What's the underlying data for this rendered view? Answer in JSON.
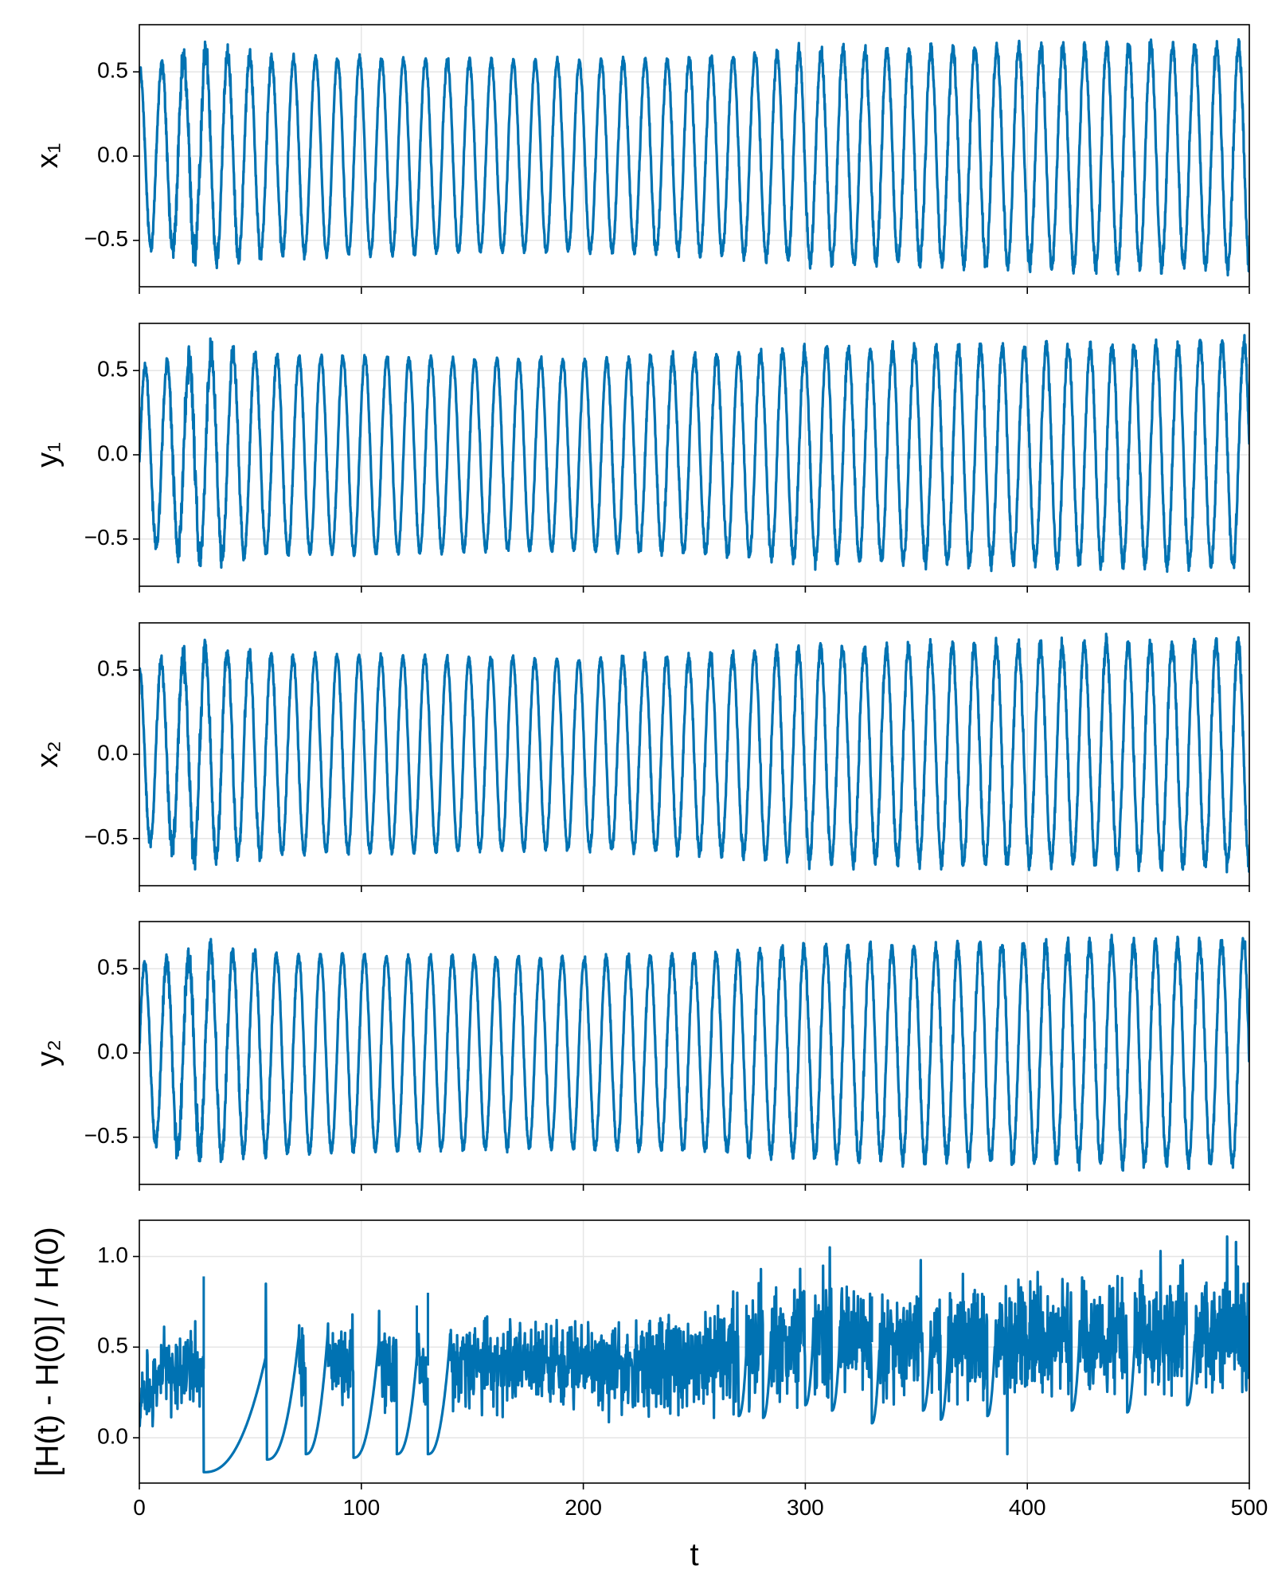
{
  "figure": {
    "accent_color": "#0072b2",
    "grid_color": "#e5e5e5",
    "background": "#ffffff"
  },
  "chart_data": [
    {
      "type": "line",
      "ylabel": "x₁",
      "xlim": [
        0,
        500
      ],
      "ylim": [
        -0.78,
        0.78
      ],
      "yticks": [
        -0.5,
        0.0,
        0.5
      ],
      "ytick_labels": [
        "−0.5",
        "0.0",
        "0.5"
      ],
      "xticks": [
        0,
        100,
        200,
        300,
        400,
        500
      ],
      "show_xtick_labels": false,
      "grid": true,
      "color": "#0072b2",
      "x": [
        0,
        12,
        25,
        30,
        40,
        60,
        80,
        100,
        140,
        180,
        200,
        240,
        260,
        280,
        300,
        320,
        340,
        360,
        380,
        400,
        420,
        440,
        460,
        480,
        500
      ],
      "amplitude": [
        0.52,
        0.55,
        0.58,
        0.62,
        0.6,
        0.58,
        0.58,
        0.58,
        0.57,
        0.56,
        0.56,
        0.57,
        0.58,
        0.6,
        0.62,
        0.63,
        0.62,
        0.63,
        0.64,
        0.64,
        0.64,
        0.65,
        0.65,
        0.65,
        0.66
      ],
      "period": 9.9,
      "phase": 1.45,
      "noise": [
        0.02,
        0.05,
        0.1,
        0.07,
        0.05,
        0.03,
        0.02,
        0.02,
        0.02,
        0.02,
        0.02,
        0.03,
        0.03,
        0.03,
        0.04,
        0.04,
        0.04,
        0.04,
        0.04,
        0.04,
        0.04,
        0.04,
        0.04,
        0.04,
        0.04
      ]
    },
    {
      "type": "line",
      "ylabel": "y₁",
      "xlim": [
        0,
        500
      ],
      "ylim": [
        -0.78,
        0.78
      ],
      "yticks": [
        -0.5,
        0.0,
        0.5
      ],
      "ytick_labels": [
        "−0.5",
        "0.0",
        "0.5"
      ],
      "xticks": [
        0,
        100,
        200,
        300,
        400,
        500
      ],
      "show_xtick_labels": false,
      "grid": true,
      "color": "#0072b2",
      "x": [
        0,
        12,
        25,
        30,
        40,
        60,
        80,
        100,
        140,
        180,
        200,
        240,
        260,
        280,
        300,
        320,
        340,
        360,
        380,
        400,
        420,
        440,
        460,
        480,
        500
      ],
      "amplitude": [
        0.52,
        0.55,
        0.58,
        0.62,
        0.6,
        0.58,
        0.58,
        0.58,
        0.57,
        0.56,
        0.56,
        0.57,
        0.58,
        0.6,
        0.62,
        0.63,
        0.62,
        0.63,
        0.64,
        0.64,
        0.64,
        0.65,
        0.65,
        0.65,
        0.66
      ],
      "period": 9.9,
      "phase": -0.1,
      "noise": [
        0.02,
        0.05,
        0.1,
        0.07,
        0.05,
        0.03,
        0.02,
        0.02,
        0.02,
        0.02,
        0.02,
        0.03,
        0.03,
        0.03,
        0.04,
        0.04,
        0.04,
        0.04,
        0.04,
        0.04,
        0.04,
        0.04,
        0.04,
        0.04,
        0.04
      ]
    },
    {
      "type": "line",
      "ylabel": "x₂",
      "xlim": [
        0,
        500
      ],
      "ylim": [
        -0.78,
        0.78
      ],
      "yticks": [
        -0.5,
        0.0,
        0.5
      ],
      "ytick_labels": [
        "−0.5",
        "0.0",
        "0.5"
      ],
      "xticks": [
        0,
        100,
        200,
        300,
        400,
        500
      ],
      "show_xtick_labels": false,
      "grid": true,
      "color": "#0072b2",
      "x": [
        0,
        12,
        25,
        30,
        40,
        60,
        80,
        100,
        140,
        180,
        200,
        240,
        260,
        280,
        300,
        320,
        340,
        360,
        380,
        400,
        420,
        440,
        460,
        480,
        500
      ],
      "amplitude": [
        0.52,
        0.55,
        0.58,
        0.62,
        0.6,
        0.58,
        0.58,
        0.58,
        0.57,
        0.56,
        0.56,
        0.57,
        0.58,
        0.6,
        0.62,
        0.63,
        0.62,
        0.63,
        0.64,
        0.64,
        0.64,
        0.65,
        0.65,
        0.65,
        0.66
      ],
      "period": 9.9,
      "phase": 1.6,
      "noise": [
        0.02,
        0.05,
        0.09,
        0.07,
        0.05,
        0.03,
        0.02,
        0.02,
        0.02,
        0.02,
        0.02,
        0.03,
        0.03,
        0.03,
        0.04,
        0.04,
        0.04,
        0.04,
        0.04,
        0.04,
        0.04,
        0.04,
        0.04,
        0.04,
        0.04
      ]
    },
    {
      "type": "line",
      "ylabel": "y₂",
      "xlim": [
        0,
        500
      ],
      "ylim": [
        -0.78,
        0.78
      ],
      "yticks": [
        -0.5,
        0.0,
        0.5
      ],
      "ytick_labels": [
        "−0.5",
        "0.0",
        "0.5"
      ],
      "xticks": [
        0,
        100,
        200,
        300,
        400,
        500
      ],
      "show_xtick_labels": false,
      "grid": true,
      "color": "#0072b2",
      "x": [
        0,
        12,
        25,
        30,
        40,
        60,
        80,
        100,
        140,
        180,
        200,
        240,
        260,
        280,
        300,
        320,
        340,
        360,
        380,
        400,
        420,
        440,
        460,
        480,
        500
      ],
      "amplitude": [
        0.52,
        0.55,
        0.58,
        0.62,
        0.6,
        0.58,
        0.58,
        0.58,
        0.57,
        0.56,
        0.56,
        0.57,
        0.58,
        0.6,
        0.62,
        0.63,
        0.62,
        0.63,
        0.64,
        0.64,
        0.64,
        0.65,
        0.65,
        0.65,
        0.66
      ],
      "period": 9.9,
      "phase": 0.05,
      "noise": [
        0.02,
        0.05,
        0.1,
        0.07,
        0.05,
        0.03,
        0.02,
        0.02,
        0.02,
        0.02,
        0.02,
        0.03,
        0.03,
        0.03,
        0.04,
        0.04,
        0.04,
        0.04,
        0.04,
        0.04,
        0.04,
        0.04,
        0.04,
        0.04,
        0.04
      ]
    },
    {
      "type": "line",
      "ylabel": "[H(t) - H(0)] / H(0)",
      "xlabel": "t",
      "xlim": [
        0,
        500
      ],
      "ylim": [
        -0.25,
        1.2
      ],
      "yticks": [
        0.0,
        0.5,
        1.0
      ],
      "ytick_labels": [
        "0.0",
        "0.5",
        "1.0"
      ],
      "xticks": [
        0,
        100,
        200,
        300,
        400,
        500
      ],
      "xtick_labels": [
        "0",
        "100",
        "200",
        "300",
        "400",
        "500"
      ],
      "show_xtick_labels": true,
      "grid": true,
      "color": "#0072b2",
      "baseline": {
        "x": [
          0,
          2,
          10,
          28,
          140,
          200,
          260,
          275,
          300,
          340,
          400,
          460,
          500
        ],
        "y": [
          0.05,
          0.25,
          0.36,
          0.38,
          0.4,
          0.4,
          0.42,
          0.5,
          0.55,
          0.52,
          0.55,
          0.56,
          0.58
        ],
        "spread": [
          0.05,
          0.15,
          0.17,
          0.17,
          0.17,
          0.18,
          0.22,
          0.25,
          0.25,
          0.24,
          0.24,
          0.25,
          0.25
        ]
      },
      "relaxation_segments": [
        {
          "t_start": 29,
          "t_end": 57,
          "y_start": -0.19,
          "y_end": 0.45
        },
        {
          "t_start": 57.5,
          "t_end": 72,
          "y_start": -0.12,
          "y_end": 0.58
        },
        {
          "t_start": 75,
          "t_end": 85,
          "y_start": -0.09,
          "y_end": 0.6
        },
        {
          "t_start": 96.5,
          "t_end": 108,
          "y_start": -0.11,
          "y_end": 0.55
        },
        {
          "t_start": 116,
          "t_end": 126,
          "y_start": -0.09,
          "y_end": 0.6
        },
        {
          "t_start": 130,
          "t_end": 140,
          "y_start": -0.09,
          "y_end": 0.55
        }
      ],
      "spikes": [
        {
          "t": 29,
          "y": 0.89
        },
        {
          "t": 57,
          "y": 0.85
        },
        {
          "t": 72,
          "y": 0.62
        },
        {
          "t": 85,
          "y": 0.63
        },
        {
          "t": 96,
          "y": 0.68
        },
        {
          "t": 108,
          "y": 0.7
        },
        {
          "t": 125,
          "y": 0.73
        },
        {
          "t": 130,
          "y": 0.8
        },
        {
          "t": 280,
          "y": 0.93
        },
        {
          "t": 311,
          "y": 1.05
        },
        {
          "t": 330,
          "y": 0.78
        },
        {
          "t": 352,
          "y": 0.98
        },
        {
          "t": 391,
          "y": -0.09
        },
        {
          "t": 460,
          "y": 1.03
        },
        {
          "t": 470,
          "y": 0.98
        },
        {
          "t": 490,
          "y": 1.11
        },
        {
          "t": 494,
          "y": 1.08
        }
      ],
      "late_relaxations": [
        {
          "t_start": 270,
          "y_start": 0.12
        },
        {
          "t_start": 281,
          "y_start": 0.11
        },
        {
          "t_start": 300,
          "y_start": 0.18
        },
        {
          "t_start": 312,
          "y_start": 0.15
        },
        {
          "t_start": 330,
          "y_start": 0.08
        },
        {
          "t_start": 353,
          "y_start": 0.15
        },
        {
          "t_start": 361,
          "y_start": 0.1
        },
        {
          "t_start": 382,
          "y_start": 0.12
        },
        {
          "t_start": 420,
          "y_start": 0.15
        },
        {
          "t_start": 445,
          "y_start": 0.14
        },
        {
          "t_start": 472,
          "y_start": 0.18
        }
      ]
    }
  ]
}
